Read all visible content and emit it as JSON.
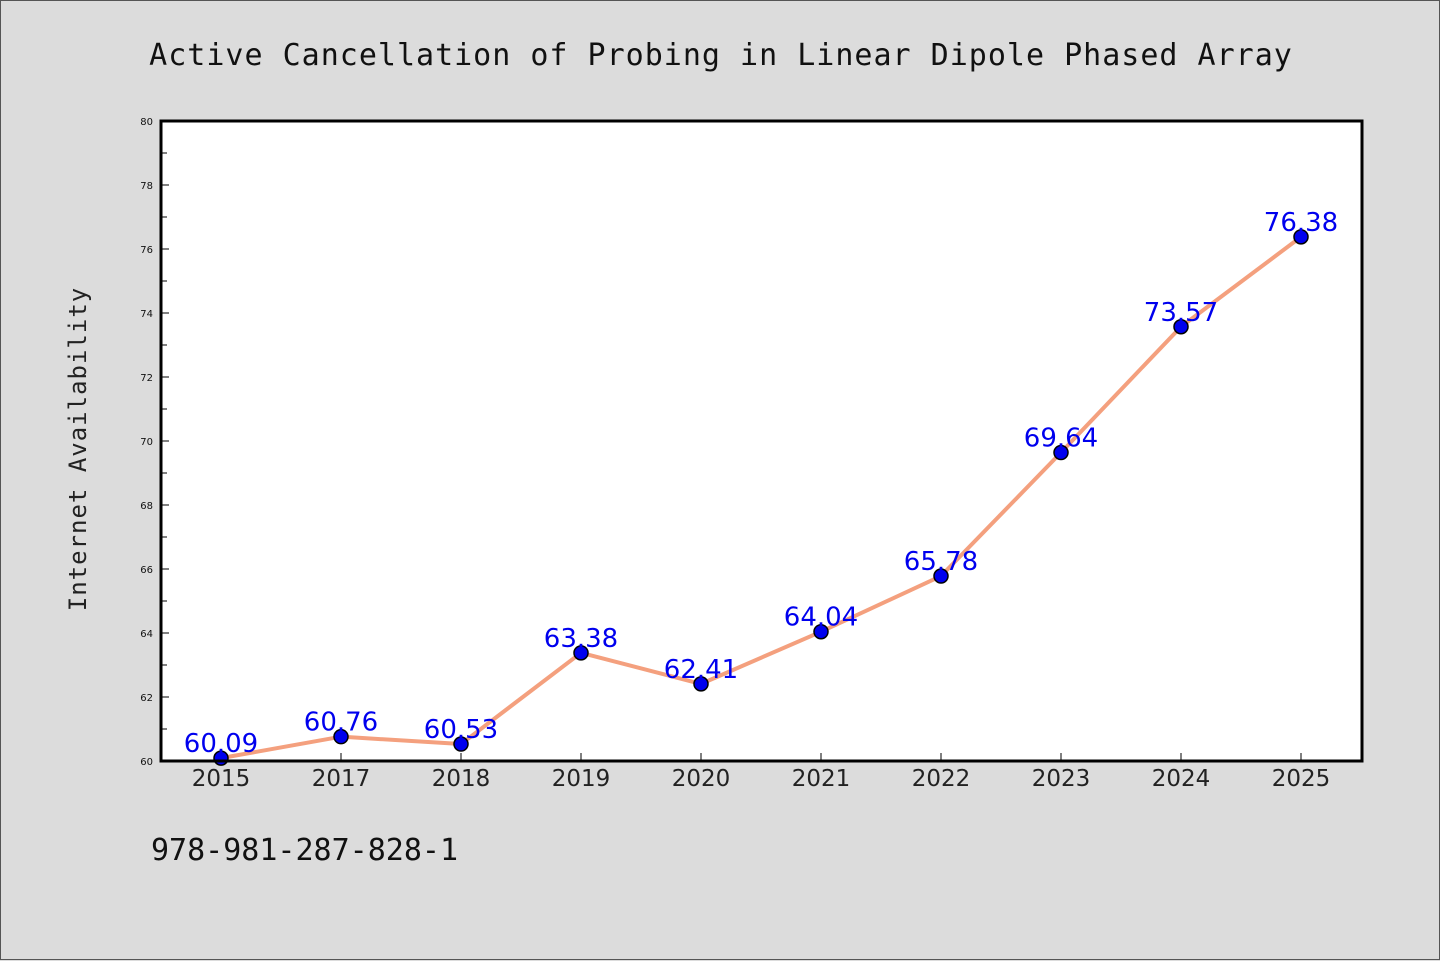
{
  "chart_data": {
    "type": "line",
    "title": "Active Cancellation of Probing in Linear Dipole Phased Array",
    "xlabel": "",
    "ylabel": "Internet Availability",
    "categories": [
      "2015",
      "2017",
      "2018",
      "2019",
      "2020",
      "2021",
      "2022",
      "2023",
      "2024",
      "2025"
    ],
    "values": [
      60.09,
      60.76,
      60.53,
      63.38,
      62.41,
      64.04,
      65.78,
      69.64,
      73.57,
      76.38
    ],
    "data_labels": [
      "60.09",
      "60.76",
      "60.53",
      "63.38",
      "62.41",
      "64.04",
      "65.78",
      "69.64",
      "73.57",
      "76.38"
    ],
    "ylim": [
      60,
      80
    ],
    "y_ticks": [
      "60",
      "62",
      "64",
      "66",
      "68",
      "70",
      "72",
      "74",
      "76",
      "78",
      "80"
    ],
    "grid": false,
    "legend": "none",
    "line_color": "#f4a07e",
    "marker_color": "#0000ee",
    "label_color": "#0000ee",
    "plot_background": "#ffffff",
    "page_background": "#dcdcdc"
  },
  "footer": {
    "isbn": "978-981-287-828-1"
  }
}
